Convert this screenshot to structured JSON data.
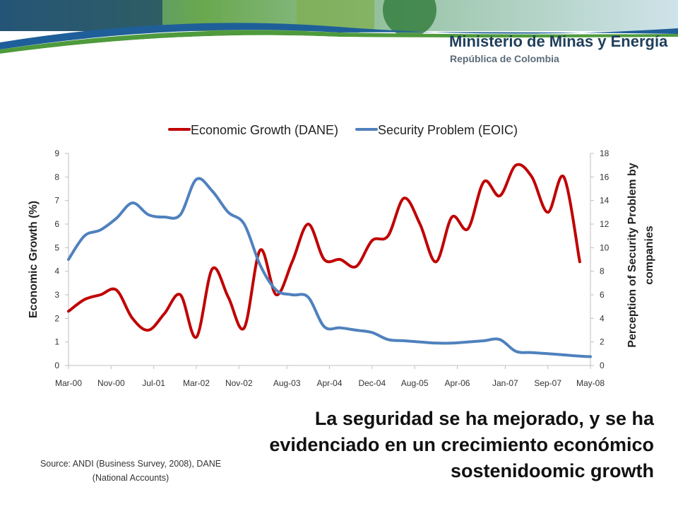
{
  "header": {
    "ministry": "Ministerio de Minas y Energía",
    "country": "República de Colombia"
  },
  "caption": "La seguridad se ha mejorado, y se ha evidenciado en un crecimiento económico sostenidoomic growth",
  "source": "Source: ANDI (Business Survey, 2008), DANE (National Accounts)",
  "colors": {
    "economic_growth": "#c00000",
    "security_problem": "#4f81bd",
    "header_blue": "#1f5f99",
    "header_green": "#4e9a3c"
  },
  "chart_data": {
    "type": "line",
    "title": "",
    "x_tick_labels": [
      "Mar-00",
      "Nov-00",
      "Jul-01",
      "Mar-02",
      "Nov-02",
      "Aug-03",
      "Apr-04",
      "Dec-04",
      "Aug-05",
      "Apr-06",
      "Jan-07",
      "Sep-07",
      "May-08"
    ],
    "ylabel": "Economic Growth (%)",
    "ylabel_right": "Perception of Security Problem by companies",
    "ylim": [
      0,
      9
    ],
    "ylim_right": [
      0,
      18
    ],
    "yticks": [
      0,
      1,
      2,
      3,
      4,
      5,
      6,
      7,
      8,
      9
    ],
    "yticks_right": [
      0,
      2,
      4,
      6,
      8,
      10,
      12,
      14,
      16,
      18
    ],
    "legend_position": "top",
    "grid": false,
    "series": [
      {
        "name": "Economic Growth (DANE)",
        "axis": "left",
        "x": [
          "Mar-00",
          "Jun-00",
          "Sep-00",
          "Dec-00",
          "Mar-01",
          "Jun-01",
          "Sep-01",
          "Dec-01",
          "Mar-02",
          "Jun-02",
          "Sep-02",
          "Dec-02",
          "Mar-03",
          "Jun-03",
          "Sep-03",
          "Dec-03",
          "Mar-04",
          "Jun-04",
          "Sep-04",
          "Dec-04",
          "Mar-05",
          "Jun-05",
          "Sep-05",
          "Dec-05",
          "Mar-06",
          "Jun-06",
          "Sep-06",
          "Dec-06",
          "Mar-07",
          "Jun-07",
          "Sep-07",
          "Dec-07",
          "Mar-08"
        ],
        "values": [
          2.3,
          2.8,
          3.0,
          3.2,
          2.0,
          1.5,
          2.2,
          3.0,
          1.2,
          4.1,
          2.9,
          1.6,
          4.9,
          3.0,
          4.4,
          6.0,
          4.5,
          4.5,
          4.2,
          5.3,
          5.5,
          7.1,
          6.0,
          4.4,
          6.3,
          5.8,
          7.8,
          7.2,
          8.5,
          8.0,
          6.5,
          8.0,
          4.4
        ]
      },
      {
        "name": "Security Problem (EOIC)",
        "axis": "right",
        "x": [
          "Mar-00",
          "Jun-00",
          "Sep-00",
          "Dec-00",
          "Mar-01",
          "Jun-01",
          "Sep-01",
          "Dec-01",
          "Mar-02",
          "Jun-02",
          "Sep-02",
          "Dec-02",
          "Mar-03",
          "Jun-03",
          "Sep-03",
          "Dec-03",
          "Mar-04",
          "Jun-04",
          "Sep-04",
          "Dec-04",
          "Mar-05",
          "Jun-05",
          "Sep-05",
          "Dec-05",
          "Mar-06",
          "Jun-06",
          "Sep-06",
          "Dec-06",
          "Mar-07",
          "Jun-07",
          "Sep-07",
          "Dec-07",
          "Mar-08",
          "May-08"
        ],
        "values": [
          9.0,
          11.0,
          11.5,
          12.5,
          13.8,
          12.8,
          12.6,
          12.8,
          15.8,
          14.8,
          13.0,
          12.0,
          8.5,
          6.4,
          6.0,
          5.8,
          3.3,
          3.2,
          3.0,
          2.8,
          2.2,
          2.1,
          2.0,
          1.9,
          1.9,
          2.0,
          2.1,
          2.2,
          1.2,
          1.1,
          1.0,
          0.9,
          0.8,
          0.75
        ]
      }
    ]
  }
}
